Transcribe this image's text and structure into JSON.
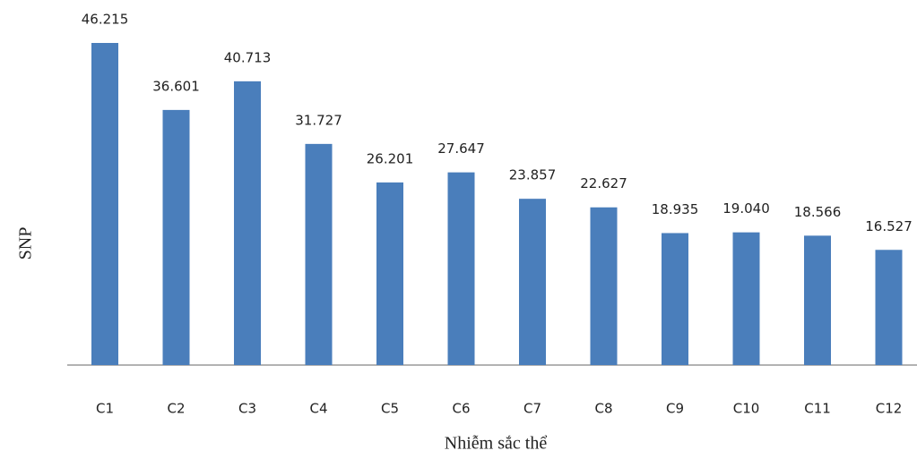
{
  "chart_data": {
    "type": "bar",
    "x_label": "Nhiễm sắc thể",
    "y_label": "SNP",
    "categories": [
      "C1",
      "C2",
      "C3",
      "C4",
      "C5",
      "C6",
      "C7",
      "C8",
      "C9",
      "C10",
      "C11",
      "C12"
    ],
    "values": [
      46.215,
      36.601,
      40.713,
      31.727,
      26.201,
      27.647,
      23.857,
      22.627,
      18.935,
      19.04,
      18.566,
      16.527
    ],
    "value_labels": [
      "46.215",
      "36.601",
      "40.713",
      "31.727",
      "26.201",
      "27.647",
      "23.857",
      "22.627",
      "18.935",
      "19.040",
      "18.566",
      "16.527"
    ],
    "color": "#4a7ebb"
  }
}
